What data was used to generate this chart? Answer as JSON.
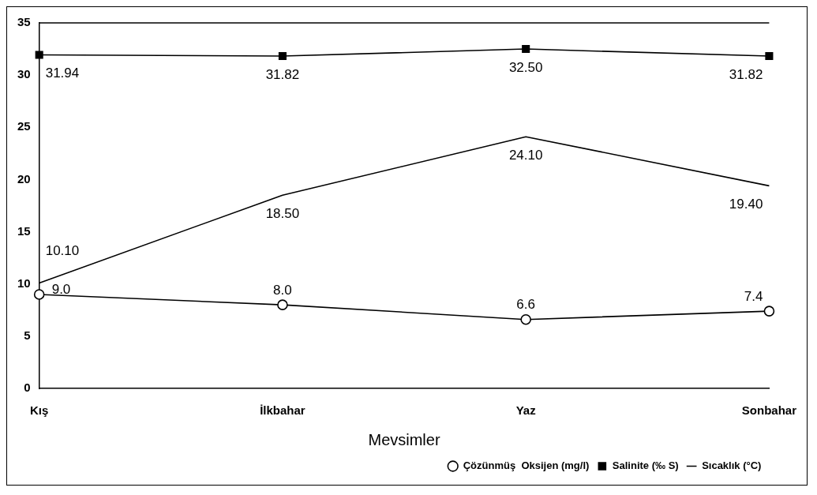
{
  "chart_data": {
    "type": "line",
    "xlabel": "Mevsimler",
    "categories": [
      "Kış",
      "İlkbahar",
      "Yaz",
      "Sonbahar"
    ],
    "series": [
      {
        "name": "Çözünmüş  Oksijen (mg/l)",
        "color": "#000000",
        "marker": "circle",
        "values": [
          9.0,
          8.0,
          6.6,
          7.4
        ],
        "value_labels": [
          "9.0",
          "8.0",
          "6.6",
          "7.4"
        ]
      },
      {
        "name": "Salinite (‰ S)",
        "color": "#000000",
        "marker": "square",
        "values": [
          31.94,
          31.82,
          32.5,
          31.82
        ],
        "value_labels": [
          "31.94",
          "31.82",
          "32.50",
          "31.82"
        ]
      },
      {
        "name": "Sıcaklık (°C)",
        "color": "#000000",
        "marker": "none",
        "values": [
          10.1,
          18.5,
          24.1,
          19.4
        ],
        "value_labels": [
          "10.10",
          "18.50",
          "24.10",
          "19.40"
        ]
      }
    ],
    "ylim": [
      0,
      35
    ],
    "yticks": [
      0,
      5,
      10,
      15,
      20,
      25,
      30,
      35
    ],
    "grid": false,
    "legend": "bottom right"
  }
}
